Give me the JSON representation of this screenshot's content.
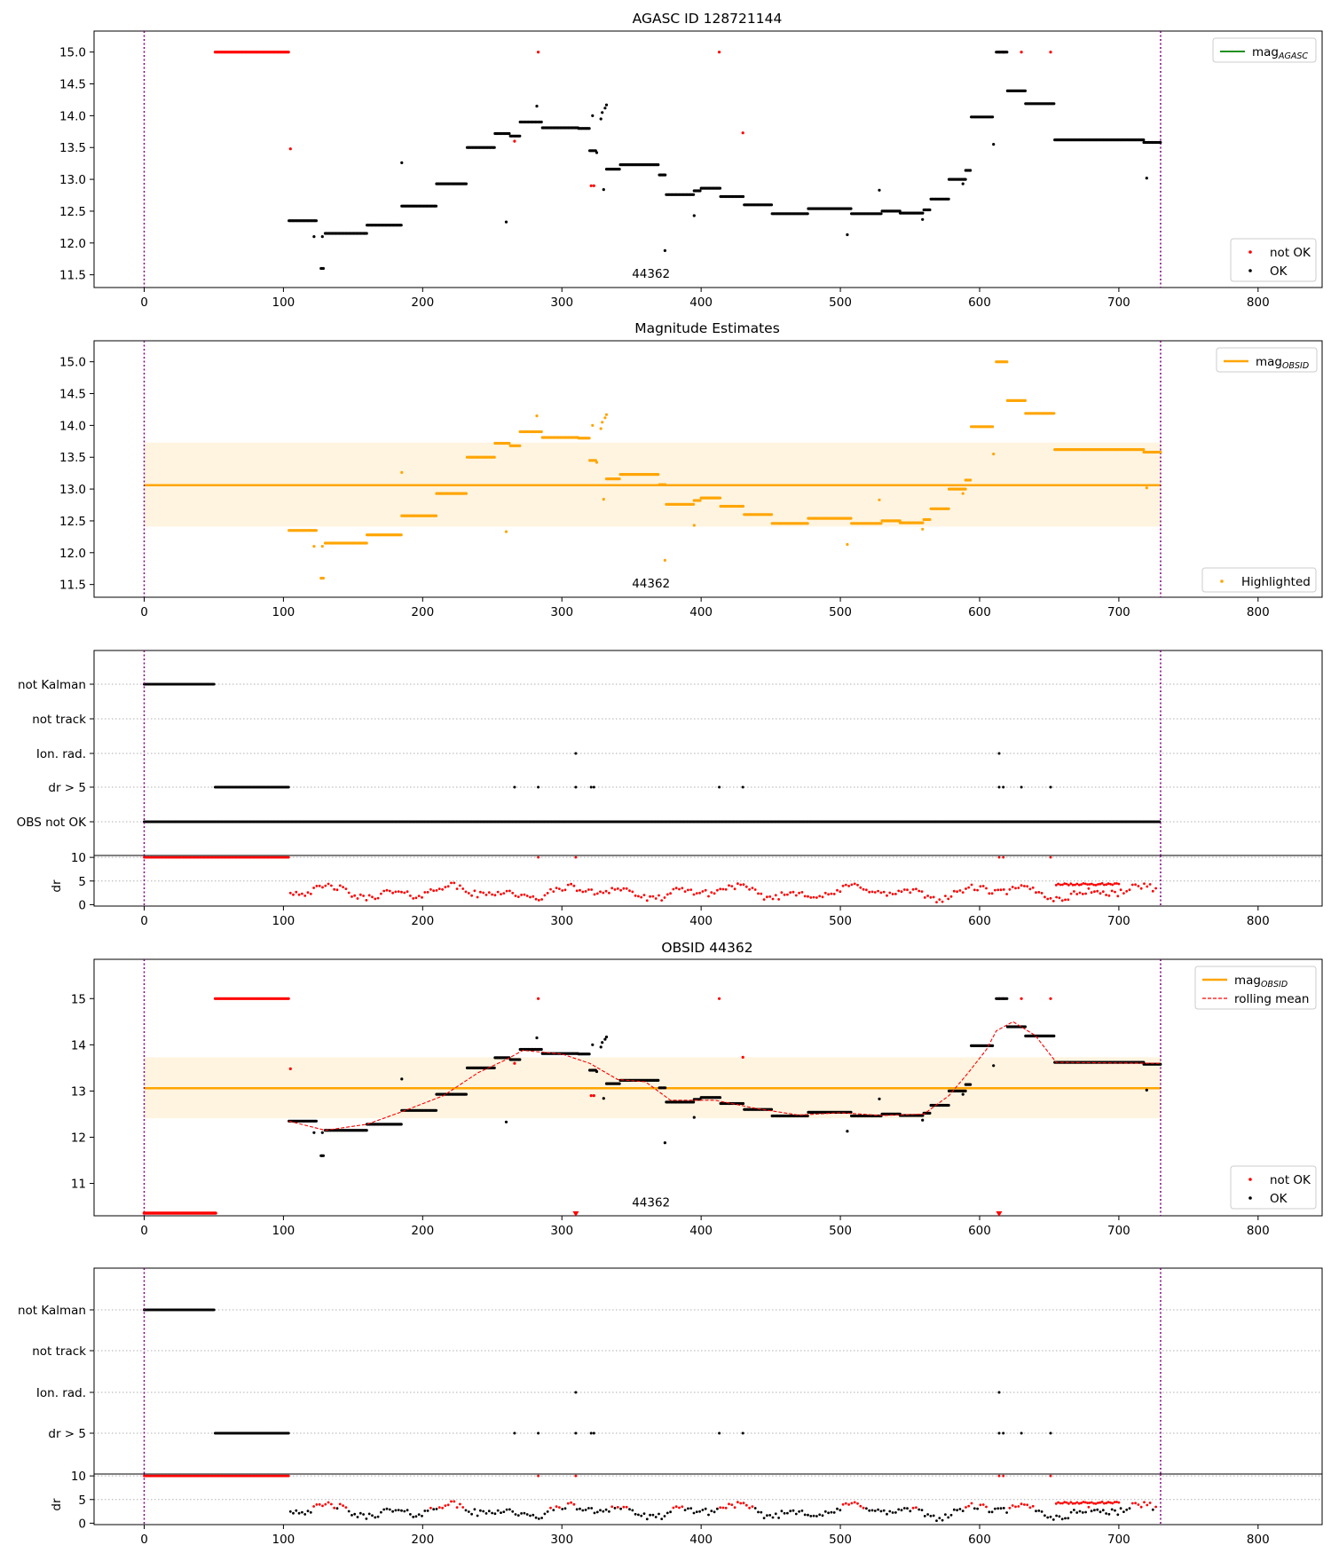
{
  "chart_data": [
    {
      "type": "scatter",
      "title": "AGASC ID 128721144",
      "xlim": [
        -36,
        846
      ],
      "ylim": [
        11.3,
        15.33
      ],
      "xticks": [
        "0",
        "100",
        "200",
        "300",
        "400",
        "500",
        "600",
        "700",
        "800"
      ],
      "yticks": [
        "11.5",
        "12.0",
        "12.5",
        "13.0",
        "13.5",
        "14.0",
        "14.5",
        "15.0"
      ],
      "vlines": [
        0,
        730
      ],
      "annotation": "44362",
      "legends": [
        [
          "mag",
          "AGASC"
        ],
        [
          "not OK",
          "OK"
        ]
      ],
      "series": [
        {
          "name": "OK",
          "color": "#000000"
        },
        {
          "name": "not OK",
          "color": "#ff0000"
        },
        {
          "name": "mag",
          "subscript": "AGASC",
          "color": "#008000"
        }
      ]
    },
    {
      "type": "scatter",
      "title": "Magnitude Estimates",
      "xlim": [
        -36,
        846
      ],
      "ylim": [
        11.3,
        15.33
      ],
      "xticks": [
        "0",
        "100",
        "200",
        "300",
        "400",
        "500",
        "600",
        "700",
        "800"
      ],
      "yticks": [
        "11.5",
        "12.0",
        "12.5",
        "13.0",
        "13.5",
        "14.0",
        "14.5",
        "15.0"
      ],
      "vlines": [
        0,
        730
      ],
      "annotation": "44362",
      "mag_line": 13.06,
      "band": [
        12.41,
        13.73
      ],
      "legends": [
        [
          "mag",
          "OBSID"
        ],
        [
          "Highlighted"
        ]
      ],
      "series": [
        {
          "name": "Highlighted",
          "color": "#ffa500"
        },
        {
          "name": "mag",
          "subscript": "OBSID",
          "color": "#ffa500"
        }
      ]
    },
    {
      "type": "scatter",
      "title": "",
      "xlim": [
        -36,
        846
      ],
      "categories": [
        "not Kalman",
        "not track",
        "Ion. rad.",
        "dr > 5",
        "OBS not OK"
      ],
      "flags": {
        "not Kalman": [
          [
            0,
            51
          ]
        ],
        "not track": [],
        "Ion. rad.": [
          310,
          614
        ],
        "dr > 5": [
          [
            51,
            104
          ],
          266,
          283,
          310,
          321,
          323,
          413,
          430,
          614,
          617,
          630,
          651
        ],
        "OBS not OK": [
          [
            0,
            730
          ]
        ]
      },
      "vlines": [
        0,
        730
      ]
    },
    {
      "type": "scatter",
      "title": "",
      "ylabel": "dr",
      "xlim": [
        -36,
        846
      ],
      "ylim": [
        -0.3,
        10.4
      ],
      "xticks": [
        "0",
        "100",
        "200",
        "300",
        "400",
        "500",
        "600",
        "700",
        "800"
      ],
      "yticks": [
        "0",
        "5",
        "10"
      ],
      "vlines": [
        0,
        730
      ],
      "series": [
        {
          "name": "dr",
          "color": "#ff0000"
        }
      ]
    },
    {
      "type": "scatter",
      "title": "OBSID 44362",
      "xlim": [
        -36,
        846
      ],
      "ylim": [
        10.3,
        15.85
      ],
      "xticks": [
        "0",
        "100",
        "200",
        "300",
        "400",
        "500",
        "600",
        "700",
        "800"
      ],
      "yticks": [
        "11",
        "12",
        "13",
        "14",
        "15"
      ],
      "vlines": [
        0,
        730
      ],
      "annotation": "44362",
      "mag_line": 13.06,
      "band": [
        12.41,
        13.73
      ],
      "legends": [
        [
          "mag",
          "OBSID",
          "rolling mean"
        ],
        [
          "not OK",
          "OK"
        ]
      ],
      "series": [
        {
          "name": "OK",
          "color": "#000000"
        },
        {
          "name": "not OK",
          "color": "#ff0000"
        },
        {
          "name": "mag",
          "subscript": "OBSID",
          "color": "#ffa500"
        },
        {
          "name": "rolling mean",
          "color": "#ff0000"
        }
      ]
    },
    {
      "type": "scatter",
      "title": "",
      "xlim": [
        -36,
        846
      ],
      "categories": [
        "not Kalman",
        "not track",
        "Ion. rad.",
        "dr > 5"
      ],
      "flags": {
        "not Kalman": [
          [
            0,
            51
          ]
        ],
        "not track": [],
        "Ion. rad.": [
          310,
          614
        ],
        "dr > 5": [
          [
            51,
            104
          ],
          266,
          283,
          310,
          321,
          323,
          413,
          430,
          614,
          617,
          630,
          651
        ]
      },
      "vlines": [
        0,
        730
      ]
    },
    {
      "type": "scatter",
      "title": "",
      "ylabel": "dr",
      "xlim": [
        -36,
        846
      ],
      "ylim": [
        -0.3,
        10.4
      ],
      "xticks": [
        "0",
        "100",
        "200",
        "300",
        "400",
        "500",
        "600",
        "700",
        "800"
      ],
      "yticks": [
        "0",
        "5",
        "10"
      ],
      "vlines": [
        0,
        730
      ],
      "series": [
        {
          "name": "dr",
          "color": "#000000"
        },
        {
          "name": "dr > 5",
          "color": "#ff0000"
        }
      ]
    }
  ]
}
